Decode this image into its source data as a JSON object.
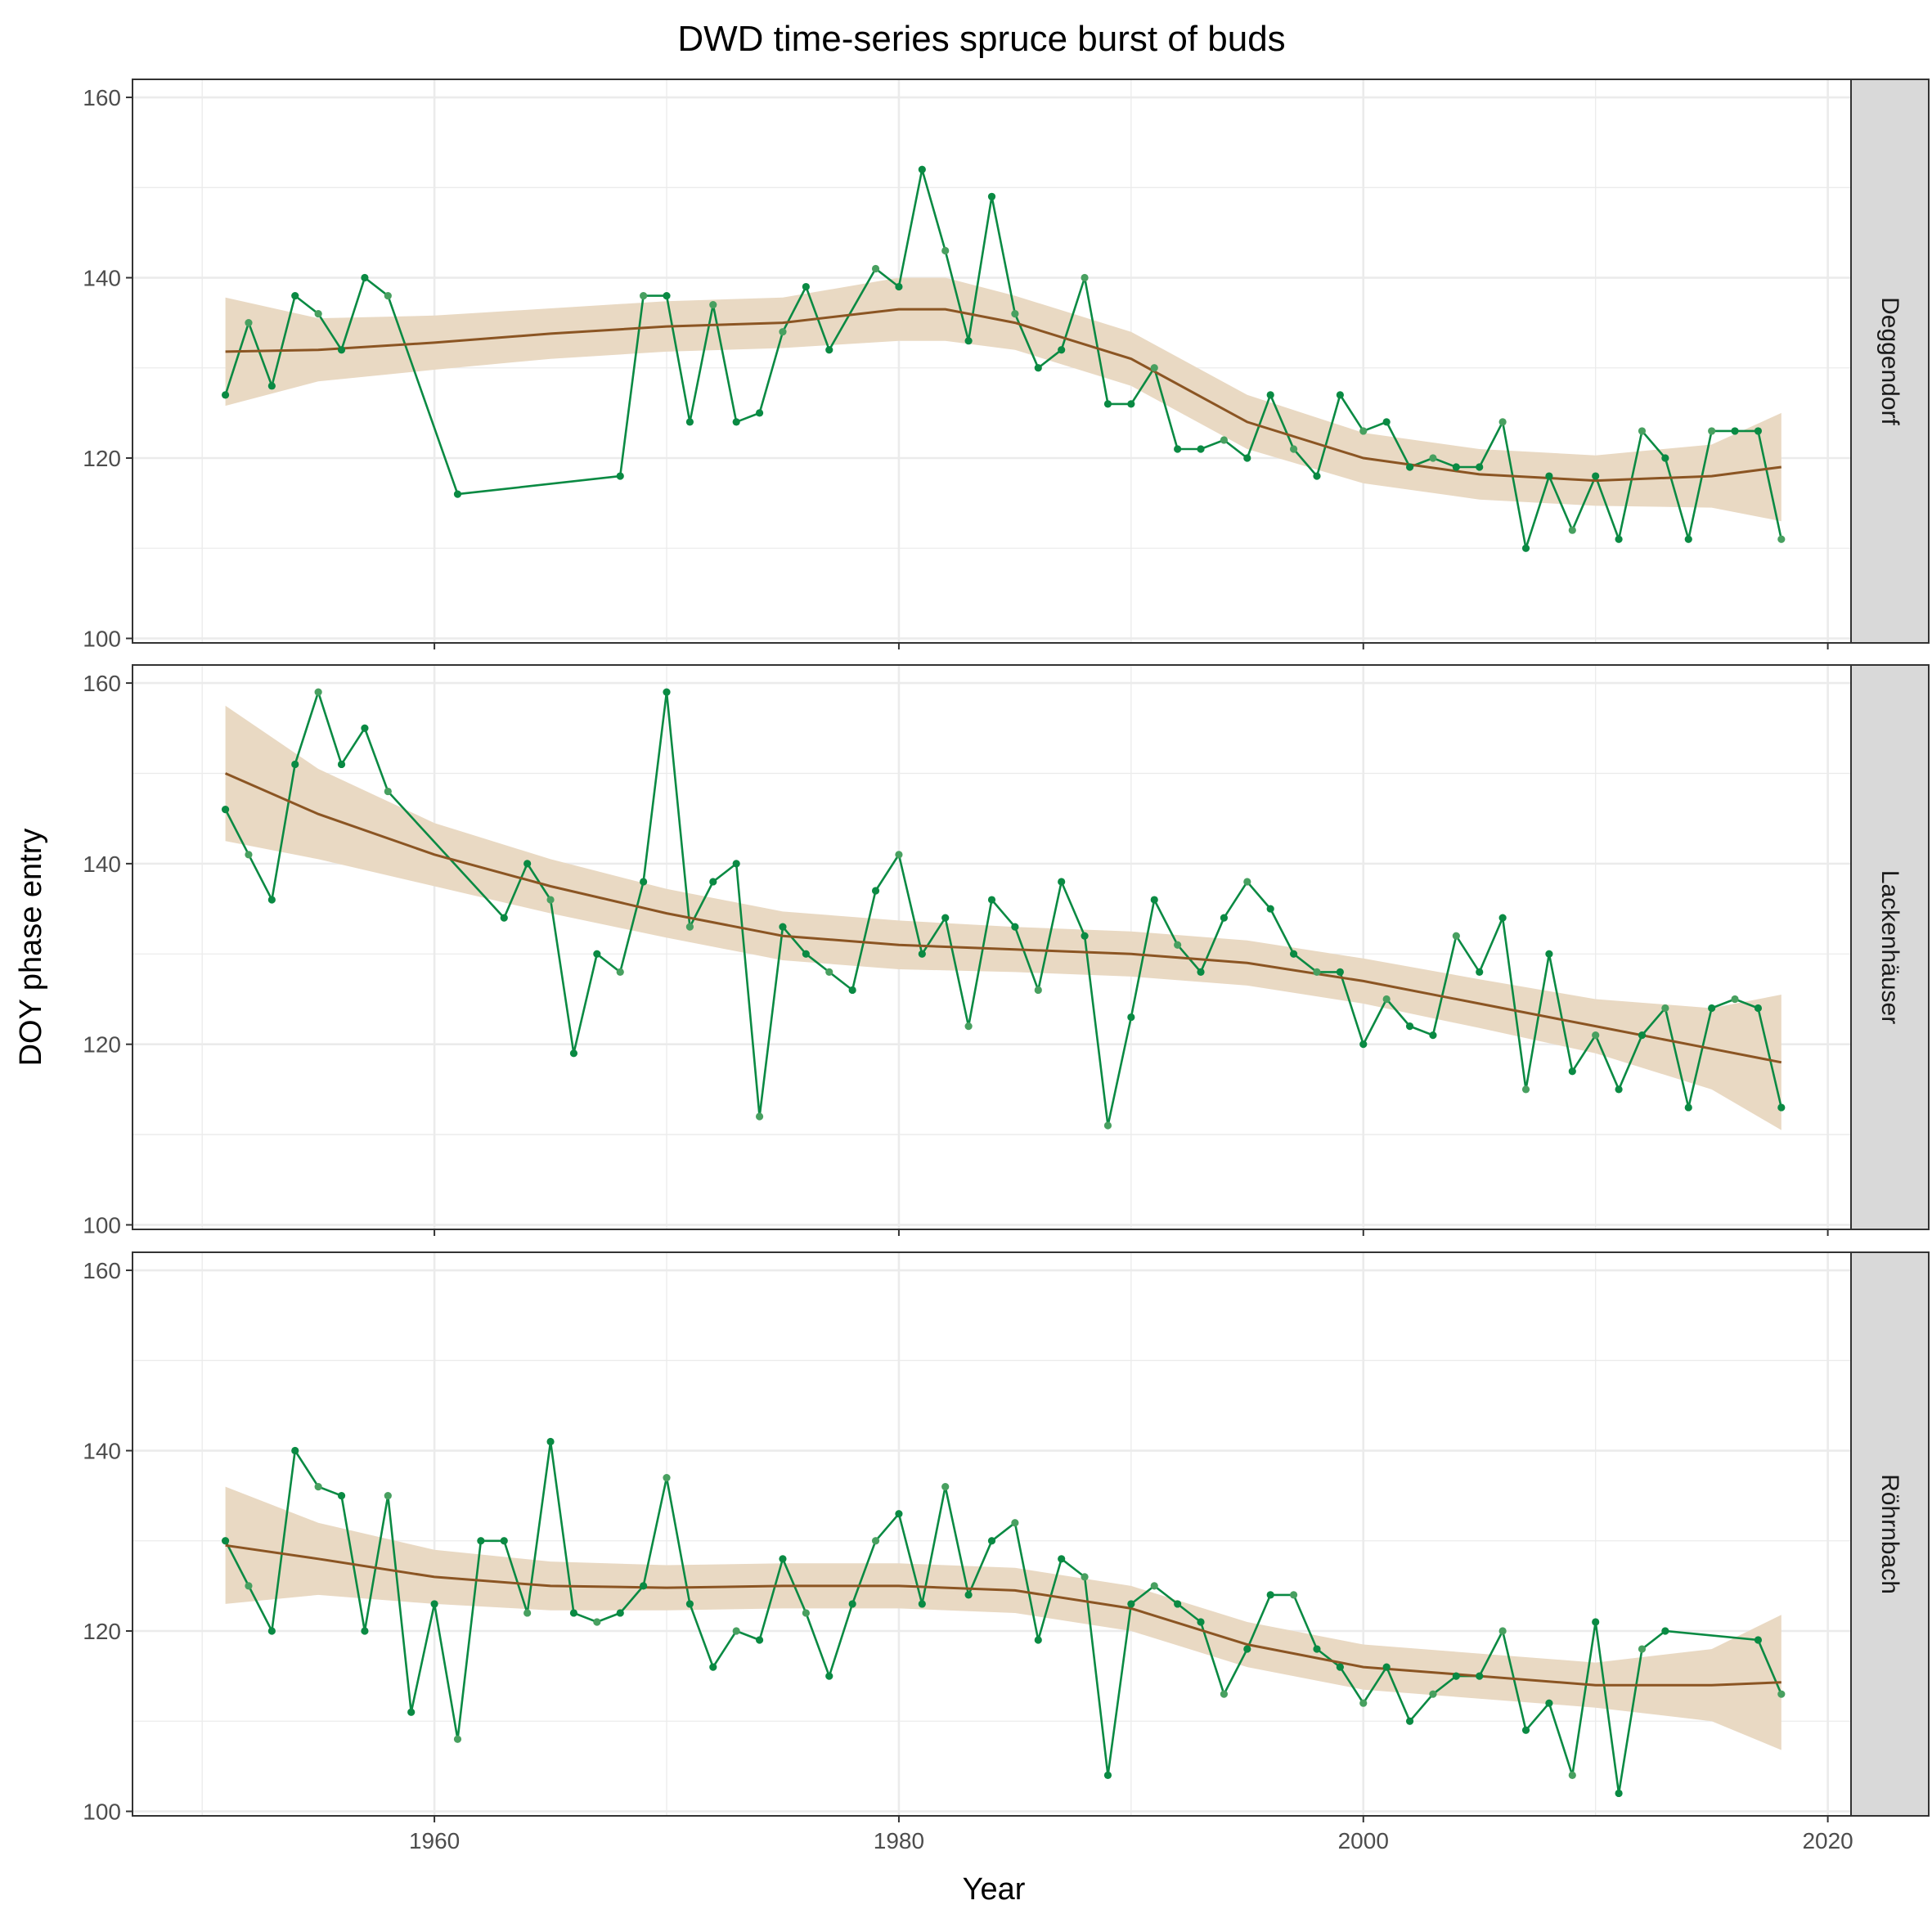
{
  "chart_data": {
    "type": "line",
    "title": "DWD time-series spruce burst of buds",
    "xlabel": "Year",
    "ylabel": "DOY phase entry",
    "xlim": [
      1947,
      2021
    ],
    "ylim": [
      99.5,
      162
    ],
    "x_ticks": [
      1960,
      1980,
      2000,
      2020
    ],
    "y_ticks": [
      100,
      120,
      140,
      160
    ],
    "colors": {
      "line": "#0a8a43",
      "point_alt": "#48a060",
      "smooth": "#8b5523",
      "ribbon": "#e9d9c3",
      "grid": "#ebebeb",
      "strip_bg": "#d9d9d9"
    },
    "panels": [
      {
        "name": "Deggendorf",
        "x": [
          1951,
          1952,
          1953,
          1954,
          1955,
          1956,
          1957,
          1958,
          1961,
          1968,
          1969,
          1970,
          1971,
          1972,
          1973,
          1974,
          1975,
          1976,
          1977,
          1979,
          1980,
          1981,
          1982,
          1983,
          1984,
          1985,
          1986,
          1987,
          1988,
          1989,
          1990,
          1991,
          1992,
          1993,
          1994,
          1995,
          1996,
          1997,
          1998,
          1999,
          2000,
          2001,
          2002,
          2003,
          2004,
          2005,
          2006,
          2007,
          2008,
          2009,
          2010,
          2011,
          2012,
          2013,
          2014,
          2015,
          2016,
          2017,
          2018
        ],
        "y": [
          127,
          135,
          128,
          138,
          136,
          132,
          140,
          138,
          116,
          118,
          138,
          138,
          124,
          137,
          124,
          125,
          134,
          139,
          132,
          141,
          139,
          152,
          143,
          133,
          149,
          136,
          130,
          132,
          140,
          126,
          126,
          130,
          121,
          121,
          122,
          120,
          127,
          121,
          118,
          127,
          123,
          124,
          119,
          120,
          119,
          119,
          124,
          110,
          118,
          112,
          118,
          111,
          123,
          120,
          111,
          123,
          123,
          123,
          111
        ],
        "smooth": {
          "x": [
            1951,
            1955,
            1960,
            1965,
            1970,
            1975,
            1980,
            1982,
            1985,
            1990,
            1995,
            2000,
            2005,
            2010,
            2015,
            2018
          ],
          "y": [
            131.8,
            132.0,
            132.8,
            133.8,
            134.6,
            135.0,
            136.5,
            136.5,
            135.0,
            131.0,
            124.0,
            120.0,
            118.2,
            117.5,
            118.0,
            119.0
          ],
          "se": [
            6.0,
            3.5,
            3.0,
            2.8,
            2.8,
            2.8,
            3.5,
            3.5,
            3.0,
            3.0,
            3.0,
            2.8,
            2.8,
            2.8,
            3.5,
            6.0
          ]
        }
      },
      {
        "name": "Lackenhäuser",
        "x": [
          1951,
          1952,
          1953,
          1954,
          1955,
          1956,
          1957,
          1958,
          1963,
          1964,
          1965,
          1966,
          1967,
          1968,
          1969,
          1970,
          1971,
          1972,
          1973,
          1974,
          1975,
          1976,
          1977,
          1978,
          1979,
          1980,
          1981,
          1982,
          1983,
          1984,
          1985,
          1986,
          1987,
          1988,
          1989,
          1990,
          1991,
          1992,
          1993,
          1994,
          1995,
          1996,
          1997,
          1998,
          1999,
          2000,
          2001,
          2002,
          2003,
          2004,
          2005,
          2006,
          2007,
          2008,
          2009,
          2010,
          2011,
          2012,
          2013,
          2014,
          2015,
          2016,
          2017,
          2018
        ],
        "y": [
          146,
          141,
          136,
          151,
          159,
          151,
          155,
          148,
          134,
          140,
          136,
          119,
          130,
          128,
          138,
          159,
          133,
          138,
          140,
          112,
          133,
          130,
          128,
          126,
          137,
          141,
          130,
          134,
          122,
          136,
          133,
          126,
          138,
          132,
          111,
          123,
          136,
          131,
          128,
          134,
          138,
          135,
          130,
          128,
          128,
          120,
          125,
          122,
          121,
          132,
          128,
          134,
          115,
          130,
          117,
          121,
          115,
          121,
          124,
          113,
          124,
          125,
          124,
          113
        ],
        "smooth": {
          "x": [
            1951,
            1955,
            1960,
            1965,
            1970,
            1975,
            1980,
            1985,
            1990,
            1995,
            2000,
            2005,
            2010,
            2015,
            2018
          ],
          "y": [
            150.0,
            145.5,
            141.0,
            137.5,
            134.5,
            132.0,
            131.0,
            130.5,
            130.0,
            129.0,
            127.0,
            124.5,
            122.0,
            119.5,
            118.0
          ],
          "se": [
            7.5,
            5.0,
            3.5,
            3.0,
            2.7,
            2.7,
            2.7,
            2.5,
            2.5,
            2.5,
            2.5,
            2.7,
            3.0,
            4.5,
            7.5
          ]
        }
      },
      {
        "name": "Röhrnbach",
        "x": [
          1951,
          1952,
          1953,
          1954,
          1955,
          1956,
          1957,
          1958,
          1959,
          1960,
          1961,
          1962,
          1963,
          1964,
          1965,
          1966,
          1967,
          1968,
          1969,
          1970,
          1971,
          1972,
          1973,
          1974,
          1975,
          1976,
          1977,
          1978,
          1979,
          1980,
          1981,
          1982,
          1983,
          1984,
          1985,
          1986,
          1987,
          1988,
          1989,
          1990,
          1991,
          1992,
          1993,
          1994,
          1995,
          1996,
          1997,
          1998,
          1999,
          2000,
          2001,
          2002,
          2003,
          2004,
          2005,
          2006,
          2007,
          2008,
          2009,
          2010,
          2011,
          2012,
          2013,
          2017,
          2018
        ],
        "y": [
          130,
          125,
          120,
          140,
          136,
          135,
          120,
          135,
          111,
          123,
          108,
          130,
          130,
          122,
          141,
          122,
          121,
          122,
          125,
          137,
          123,
          116,
          120,
          119,
          128,
          122,
          115,
          123,
          130,
          133,
          123,
          136,
          124,
          130,
          132,
          119,
          128,
          126,
          104,
          123,
          125,
          123,
          121,
          113,
          118,
          124,
          124,
          118,
          116,
          112,
          116,
          110,
          113,
          115,
          115,
          120,
          109,
          112,
          104,
          121,
          102,
          118,
          120,
          119,
          113
        ],
        "smooth": {
          "x": [
            1951,
            1955,
            1960,
            1965,
            1970,
            1975,
            1980,
            1985,
            1990,
            1995,
            2000,
            2005,
            2010,
            2015,
            2018
          ],
          "y": [
            129.5,
            128.0,
            126.0,
            125.0,
            124.8,
            125.0,
            125.0,
            124.5,
            122.5,
            118.5,
            116.0,
            115.0,
            114.0,
            114.0,
            114.3
          ],
          "se": [
            6.5,
            4.0,
            3.0,
            2.7,
            2.5,
            2.5,
            2.5,
            2.5,
            2.5,
            2.5,
            2.5,
            2.5,
            2.5,
            4.0,
            7.5
          ]
        }
      }
    ]
  }
}
